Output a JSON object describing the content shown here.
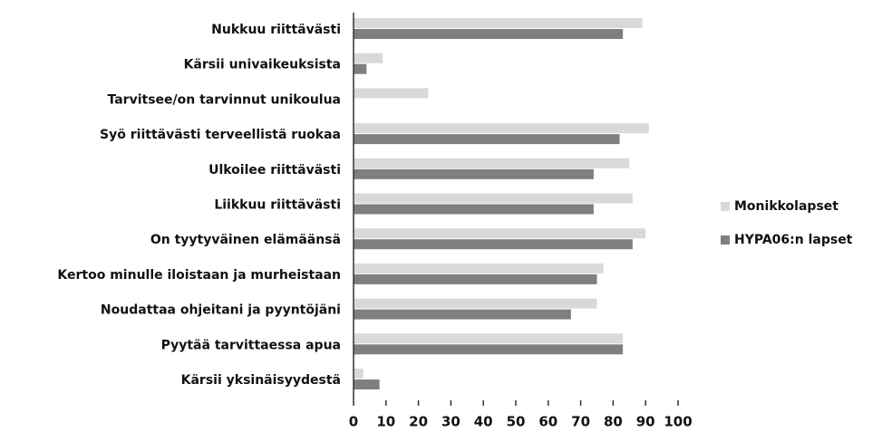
{
  "chart_data": {
    "type": "hbar",
    "categories": [
      "Nukkuu riittävästi",
      "Kärsii univaikeuksista",
      "Tarvitsee/on tarvinnut unikoulua",
      "Syö riittävästi terveellistä ruokaa",
      "Ulkoilee riittävästi",
      "Liikkuu riittävästi",
      "On tyytyväinen elämäänsä",
      "Kertoo minulle iloistaan ja murheistaan",
      "Noudattaa ohjeitani ja pyyntöjäni",
      "Pyytää tarvittaessa apua",
      "Kärsii yksinäisyydestä"
    ],
    "series": [
      {
        "name": "Monikkolapset",
        "color": "#d9d9d9",
        "values": [
          89,
          9,
          23,
          91,
          85,
          86,
          90,
          77,
          75,
          83,
          3
        ]
      },
      {
        "name": "HYPA06:n lapset",
        "color": "#7f7f7f",
        "values": [
          83,
          4,
          0,
          82,
          74,
          74,
          86,
          75,
          67,
          83,
          8
        ]
      }
    ],
    "xlim": [
      0,
      100
    ],
    "xticks": [
      0,
      10,
      20,
      30,
      40,
      50,
      60,
      70,
      80,
      90,
      100
    ],
    "grid": false,
    "legend": "right"
  }
}
